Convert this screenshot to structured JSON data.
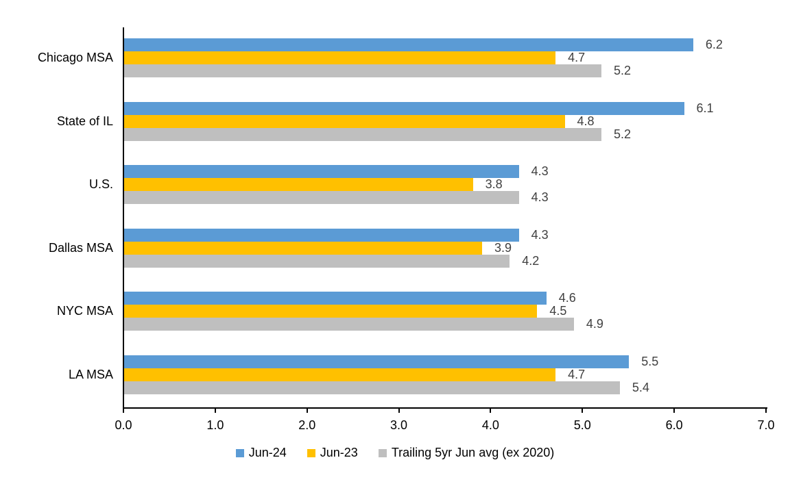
{
  "chart_data": {
    "type": "bar",
    "orientation": "horizontal",
    "title": "",
    "categories": [
      "Chicago MSA",
      "State of IL",
      "U.S.",
      "Dallas MSA",
      "NYC MSA",
      "LA MSA"
    ],
    "series": [
      {
        "name": "Jun-24",
        "color": "#5B9BD5",
        "values": [
          6.2,
          6.1,
          4.3,
          4.3,
          4.6,
          5.5
        ]
      },
      {
        "name": "Jun-23",
        "color": "#FFC000",
        "values": [
          4.7,
          4.8,
          3.8,
          3.9,
          4.5,
          4.7
        ]
      },
      {
        "name": "Trailing 5yr Jun avg (ex 2020)",
        "color": "#BFBFBF",
        "values": [
          5.2,
          5.2,
          4.3,
          4.2,
          4.9,
          5.4
        ]
      }
    ],
    "value_labels": [
      "6.2",
      "4.7",
      "5.2",
      "6.1",
      "4.8",
      "5.2",
      "4.3",
      "3.8",
      "4.3",
      "4.3",
      "3.9",
      "4.2",
      "4.6",
      "4.5",
      "4.9",
      "5.5",
      "4.7",
      "5.4"
    ],
    "xlim": [
      0,
      7
    ],
    "x_ticks": [
      "0.0",
      "1.0",
      "2.0",
      "3.0",
      "4.0",
      "5.0",
      "6.0",
      "7.0"
    ],
    "grid": false,
    "legend_position": "bottom"
  },
  "styles": {
    "background": "#FFFFFF",
    "axis_color": "#000000",
    "category_label_color": "#000000",
    "value_label_color": "#404040",
    "tick_label_color": "#000000",
    "legend_text_color": "#000000"
  }
}
